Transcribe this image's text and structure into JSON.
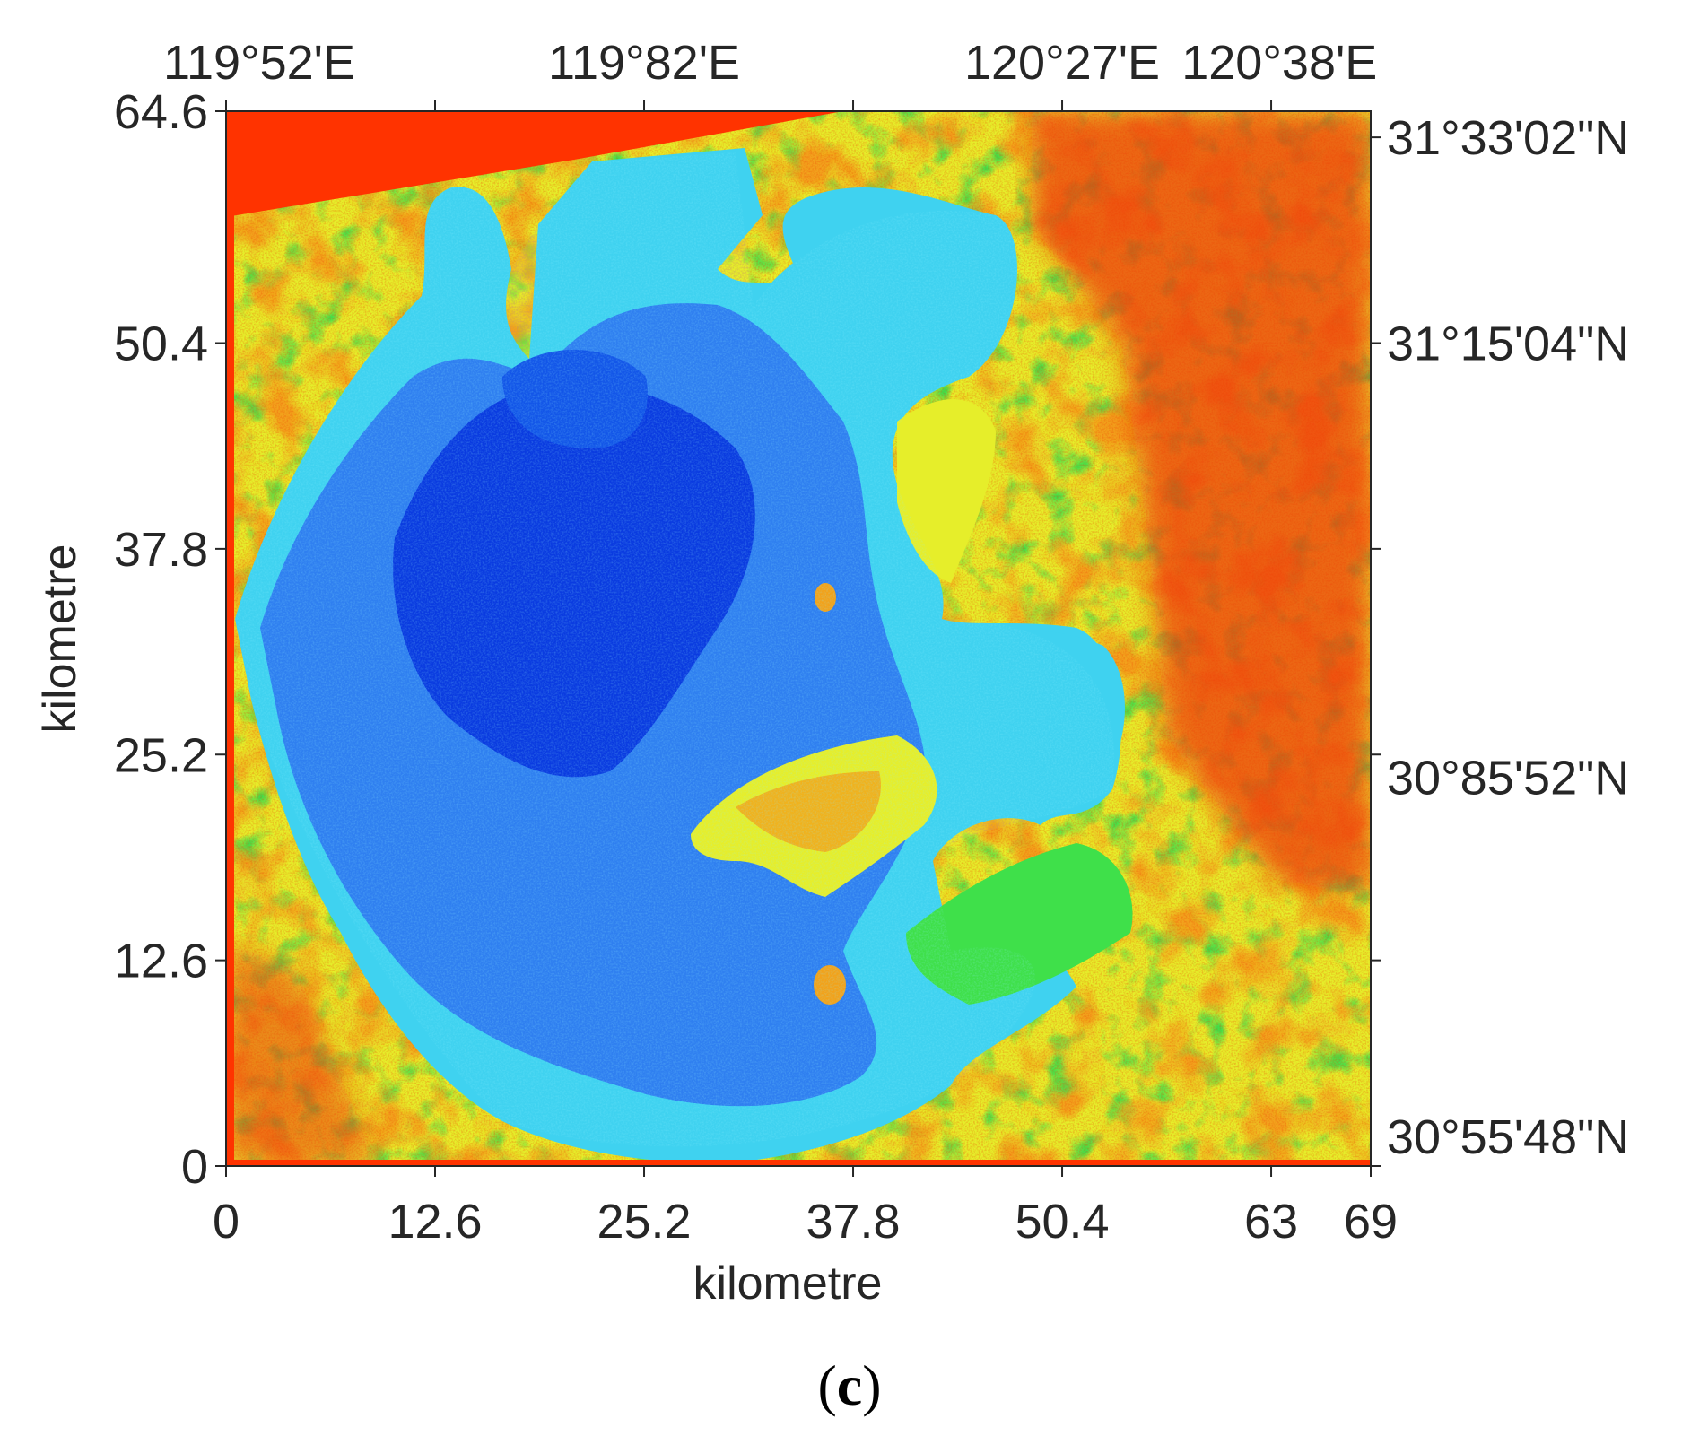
{
  "map": {
    "panel_label": {
      "open": "(",
      "letter": "c",
      "close": ")"
    },
    "x_axis": {
      "label": "kilometre",
      "range": [
        0,
        69
      ],
      "ticks": [
        0,
        12.6,
        25.2,
        37.8,
        50.4,
        63,
        69
      ],
      "tick_labels": [
        "0",
        "12.6",
        "25.2",
        "37.8",
        "50.4",
        "63",
        "69"
      ]
    },
    "y_axis": {
      "label": "kilometre",
      "range": [
        0,
        64.6
      ],
      "ticks": [
        0,
        12.6,
        25.2,
        37.8,
        50.4,
        64.6
      ],
      "tick_labels": [
        "0",
        "12.6",
        "25.2",
        "37.8",
        "50.4",
        "64.6"
      ]
    },
    "top_axis": {
      "ticks_km": [
        0,
        12.6,
        25.2,
        37.8,
        50.4,
        63
      ],
      "labels": [
        {
          "text": "119°52'E",
          "at_km": 2
        },
        {
          "text": "119°82'E",
          "at_km": 25.2
        },
        {
          "text": "120°27'E",
          "at_km": 50.4
        },
        {
          "text": "120°38'E",
          "at_km": 63.5
        }
      ]
    },
    "right_axis": {
      "ticks_km": [
        0,
        12.6,
        25.2,
        37.8,
        50.4,
        63
      ],
      "labels": [
        {
          "text": "31°33'02\"N",
          "at_km": 63
        },
        {
          "text": "31°15'04\"N",
          "at_km": 50.4
        },
        {
          "text": "30°85'52\"N",
          "at_km": 23.8
        },
        {
          "text": "30°55'48\"N",
          "at_km": 1.8
        }
      ]
    },
    "colors": {
      "deep_water": "#0a3be0",
      "water": "#2f7ff0",
      "shallow_water": "#3fd2f0",
      "land_green": "#3fe04a",
      "land_yellow": "#e6ee2a",
      "land_orange": "#f2a21a",
      "land_red": "#ee3a0c",
      "nodata_red": "#ff3300"
    }
  }
}
